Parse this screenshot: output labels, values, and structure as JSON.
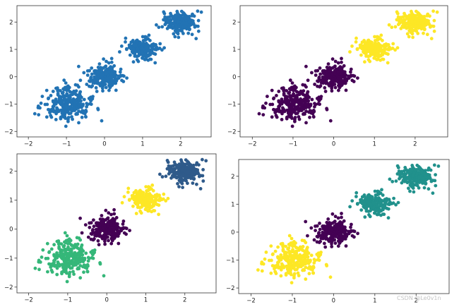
{
  "colors": {
    "blue": "#2273b4",
    "purple": "#440154",
    "yellow": "#fde725",
    "teal": "#21918c",
    "green": "#35b779",
    "navy": "#2f5a8a"
  },
  "chart_data": [
    {
      "type": "scatter",
      "title": "",
      "xlabel": "",
      "ylabel": "",
      "xlim": [
        -2.3,
        2.8
      ],
      "ylim": [
        -2.2,
        2.6
      ],
      "xticks": [
        -2,
        -1,
        0,
        1,
        2
      ],
      "yticks": [
        -2,
        -1,
        0,
        1,
        2
      ],
      "grid": false,
      "clusters": [
        {
          "center": [
            -1,
            -1
          ],
          "spread": 0.32,
          "count": 260,
          "color": "#2273b4"
        },
        {
          "center": [
            0,
            0
          ],
          "spread": 0.22,
          "count": 220,
          "color": "#2273b4"
        },
        {
          "center": [
            1,
            1
          ],
          "spread": 0.2,
          "count": 200,
          "color": "#2273b4"
        },
        {
          "center": [
            2,
            2
          ],
          "spread": 0.2,
          "count": 220,
          "color": "#2273b4"
        }
      ]
    },
    {
      "type": "scatter",
      "title": "",
      "xlabel": "",
      "ylabel": "",
      "xlim": [
        -2.3,
        2.8
      ],
      "ylim": [
        -2.2,
        2.6
      ],
      "xticks": [
        -2,
        -1,
        0,
        1,
        2
      ],
      "yticks": [
        -2,
        -1,
        0,
        1,
        2
      ],
      "grid": false,
      "clusters": [
        {
          "center": [
            -1,
            -1
          ],
          "spread": 0.32,
          "count": 260,
          "color": "#440154"
        },
        {
          "center": [
            0,
            0
          ],
          "spread": 0.22,
          "count": 220,
          "color": "#440154"
        },
        {
          "center": [
            1,
            1
          ],
          "spread": 0.2,
          "count": 200,
          "color": "#fde725"
        },
        {
          "center": [
            2,
            2
          ],
          "spread": 0.2,
          "count": 220,
          "color": "#fde725"
        }
      ]
    },
    {
      "type": "scatter",
      "title": "",
      "xlabel": "",
      "ylabel": "",
      "xlim": [
        -2.3,
        2.8
      ],
      "ylim": [
        -2.2,
        2.6
      ],
      "xticks": [
        -2,
        -1,
        0,
        1,
        2
      ],
      "yticks": [
        -2,
        -1,
        0,
        1,
        2
      ],
      "grid": false,
      "clusters": [
        {
          "center": [
            -1,
            -1
          ],
          "spread": 0.32,
          "count": 260,
          "color": "#35b779"
        },
        {
          "center": [
            0,
            0
          ],
          "spread": 0.22,
          "count": 220,
          "color": "#440154"
        },
        {
          "center": [
            1,
            1
          ],
          "spread": 0.2,
          "count": 200,
          "color": "#fde725"
        },
        {
          "center": [
            2,
            2
          ],
          "spread": 0.2,
          "count": 220,
          "color": "#2f5a8a"
        }
      ]
    },
    {
      "type": "scatter",
      "title": "",
      "xlabel": "",
      "ylabel": "",
      "xlim": [
        -2.3,
        2.8
      ],
      "ylim": [
        -2.2,
        2.6
      ],
      "xticks": [
        -2,
        -1,
        0,
        1,
        2
      ],
      "yticks": [
        -2,
        -1,
        0,
        1,
        2
      ],
      "grid": false,
      "clusters": [
        {
          "center": [
            -1,
            -1
          ],
          "spread": 0.32,
          "count": 260,
          "color": "#fde725"
        },
        {
          "center": [
            0,
            0
          ],
          "spread": 0.22,
          "count": 220,
          "color": "#440154"
        },
        {
          "center": [
            1,
            1
          ],
          "spread": 0.2,
          "count": 200,
          "color": "#21918c"
        },
        {
          "center": [
            2,
            2
          ],
          "spread": 0.2,
          "count": 220,
          "color": "#21918c"
        }
      ]
    }
  ],
  "watermark": "CSDN @Le0v1n"
}
